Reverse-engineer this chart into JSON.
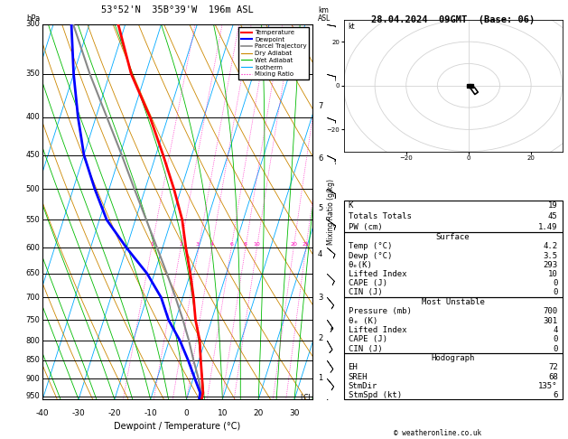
{
  "title_left": "53°52'N  35B°39'W  196m ASL",
  "title_right": "28.04.2024  09GMT  (Base: 06)",
  "xlabel": "Dewpoint / Temperature (°C)",
  "xmin": -40,
  "xmax": 35,
  "pressure_levels": [
    300,
    350,
    400,
    450,
    500,
    550,
    600,
    650,
    700,
    750,
    800,
    850,
    900,
    950
  ],
  "pressure_min": 300,
  "pressure_max": 960,
  "temp_color": "#ff0000",
  "dewp_color": "#0000ff",
  "parcel_color": "#888888",
  "dry_adiabat_color": "#cc8800",
  "wet_adiabat_color": "#00bb00",
  "isotherm_color": "#00aaff",
  "mixing_color": "#ff00bb",
  "km_labels": [
    1,
    2,
    3,
    4,
    5,
    6,
    7
  ],
  "km_pressures": [
    899,
    795,
    700,
    612,
    530,
    455,
    387
  ],
  "mixing_ratio_values": [
    1,
    2,
    3,
    4,
    6,
    8,
    10,
    20,
    25
  ],
  "mixing_ratio_labels": [
    "1",
    "2",
    "3 ",
    "4",
    "6",
    "8",
    "10",
    "20",
    "25"
  ],
  "lcl_pressure": 955,
  "temp_pressures": [
    960,
    940,
    900,
    850,
    800,
    750,
    700,
    650,
    600,
    550,
    500,
    450,
    400,
    350,
    300
  ],
  "temp_temps": [
    4.2,
    4.0,
    2.5,
    0.5,
    -1.5,
    -4.5,
    -7.0,
    -10.0,
    -13.5,
    -17.0,
    -22.0,
    -28.0,
    -35.0,
    -44.0,
    -52.0
  ],
  "dewp_temps": [
    3.5,
    3.2,
    0.5,
    -3.0,
    -7.0,
    -12.0,
    -16.0,
    -22.0,
    -30.0,
    -38.0,
    -44.0,
    -50.0,
    -55.0,
    -60.0,
    -65.0
  ],
  "parcel_pressures": [
    960,
    940,
    920,
    900,
    850,
    800,
    750,
    700,
    650,
    600,
    550,
    500,
    450,
    400,
    350,
    300
  ],
  "parcel_temps": [
    4.2,
    3.5,
    2.5,
    1.5,
    -1.5,
    -4.5,
    -8.0,
    -12.0,
    -16.5,
    -21.5,
    -27.0,
    -33.0,
    -39.5,
    -47.0,
    -55.5,
    -64.5
  ],
  "stats_k": 19,
  "stats_totals": 45,
  "stats_pw": "1.49",
  "surf_temp": "4.2",
  "surf_dewp": "3.5",
  "surf_theta": 293,
  "surf_li": 10,
  "surf_cape": 0,
  "surf_cin": 0,
  "mu_pressure": 700,
  "mu_theta": 301,
  "mu_li": 4,
  "mu_cape": 0,
  "mu_cin": 0,
  "hodo_eh": 72,
  "hodo_sreh": 68,
  "hodo_stmdir": "135°",
  "hodo_stmspd": 6,
  "copyright": "© weatheronline.co.uk",
  "wind_levels_p": [
    960,
    900,
    850,
    800,
    750,
    700,
    650,
    600,
    550,
    500,
    450,
    400,
    350,
    300
  ],
  "wind_levels_dir": [
    135,
    140,
    145,
    150,
    145,
    140,
    135,
    130,
    125,
    120,
    115,
    110,
    105,
    100
  ],
  "wind_levels_spd": [
    6,
    8,
    10,
    12,
    14,
    12,
    10,
    8,
    10,
    12,
    14,
    16,
    18,
    20
  ]
}
